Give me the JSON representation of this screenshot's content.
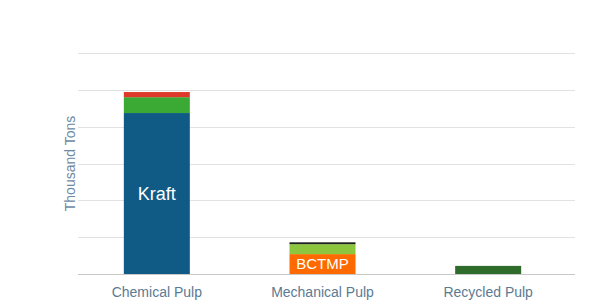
{
  "chart_data": {
    "type": "bar",
    "stacked": true,
    "y_label": "Thousand Tons",
    "categories": [
      "Chemical Pulp",
      "Mechanical Pulp",
      "Recycled Pulp"
    ],
    "series": [
      {
        "name": "Kraft",
        "color": "#0f5b85",
        "values": [
          4370,
          null,
          null
        ]
      },
      {
        "color": "#3aaa35",
        "values": [
          430,
          null,
          null
        ]
      },
      {
        "color": "#de3a2c",
        "values": [
          140,
          null,
          null
        ]
      },
      {
        "name": "BCTMP",
        "color": "#ff6a00",
        "values": [
          null,
          540,
          null
        ]
      },
      {
        "color": "#8cc63f",
        "values": [
          null,
          270,
          null
        ]
      },
      {
        "color": "#1e1e1e",
        "values": [
          null,
          50,
          null
        ]
      },
      {
        "color": "#2f6b2b",
        "values": [
          null,
          null,
          220
        ]
      }
    ],
    "ylim": [
      0,
      6000
    ],
    "yticks": [
      0,
      1000,
      2000,
      3000,
      4000,
      5000,
      6000
    ],
    "grid": true,
    "tick_labels": "x"
  }
}
